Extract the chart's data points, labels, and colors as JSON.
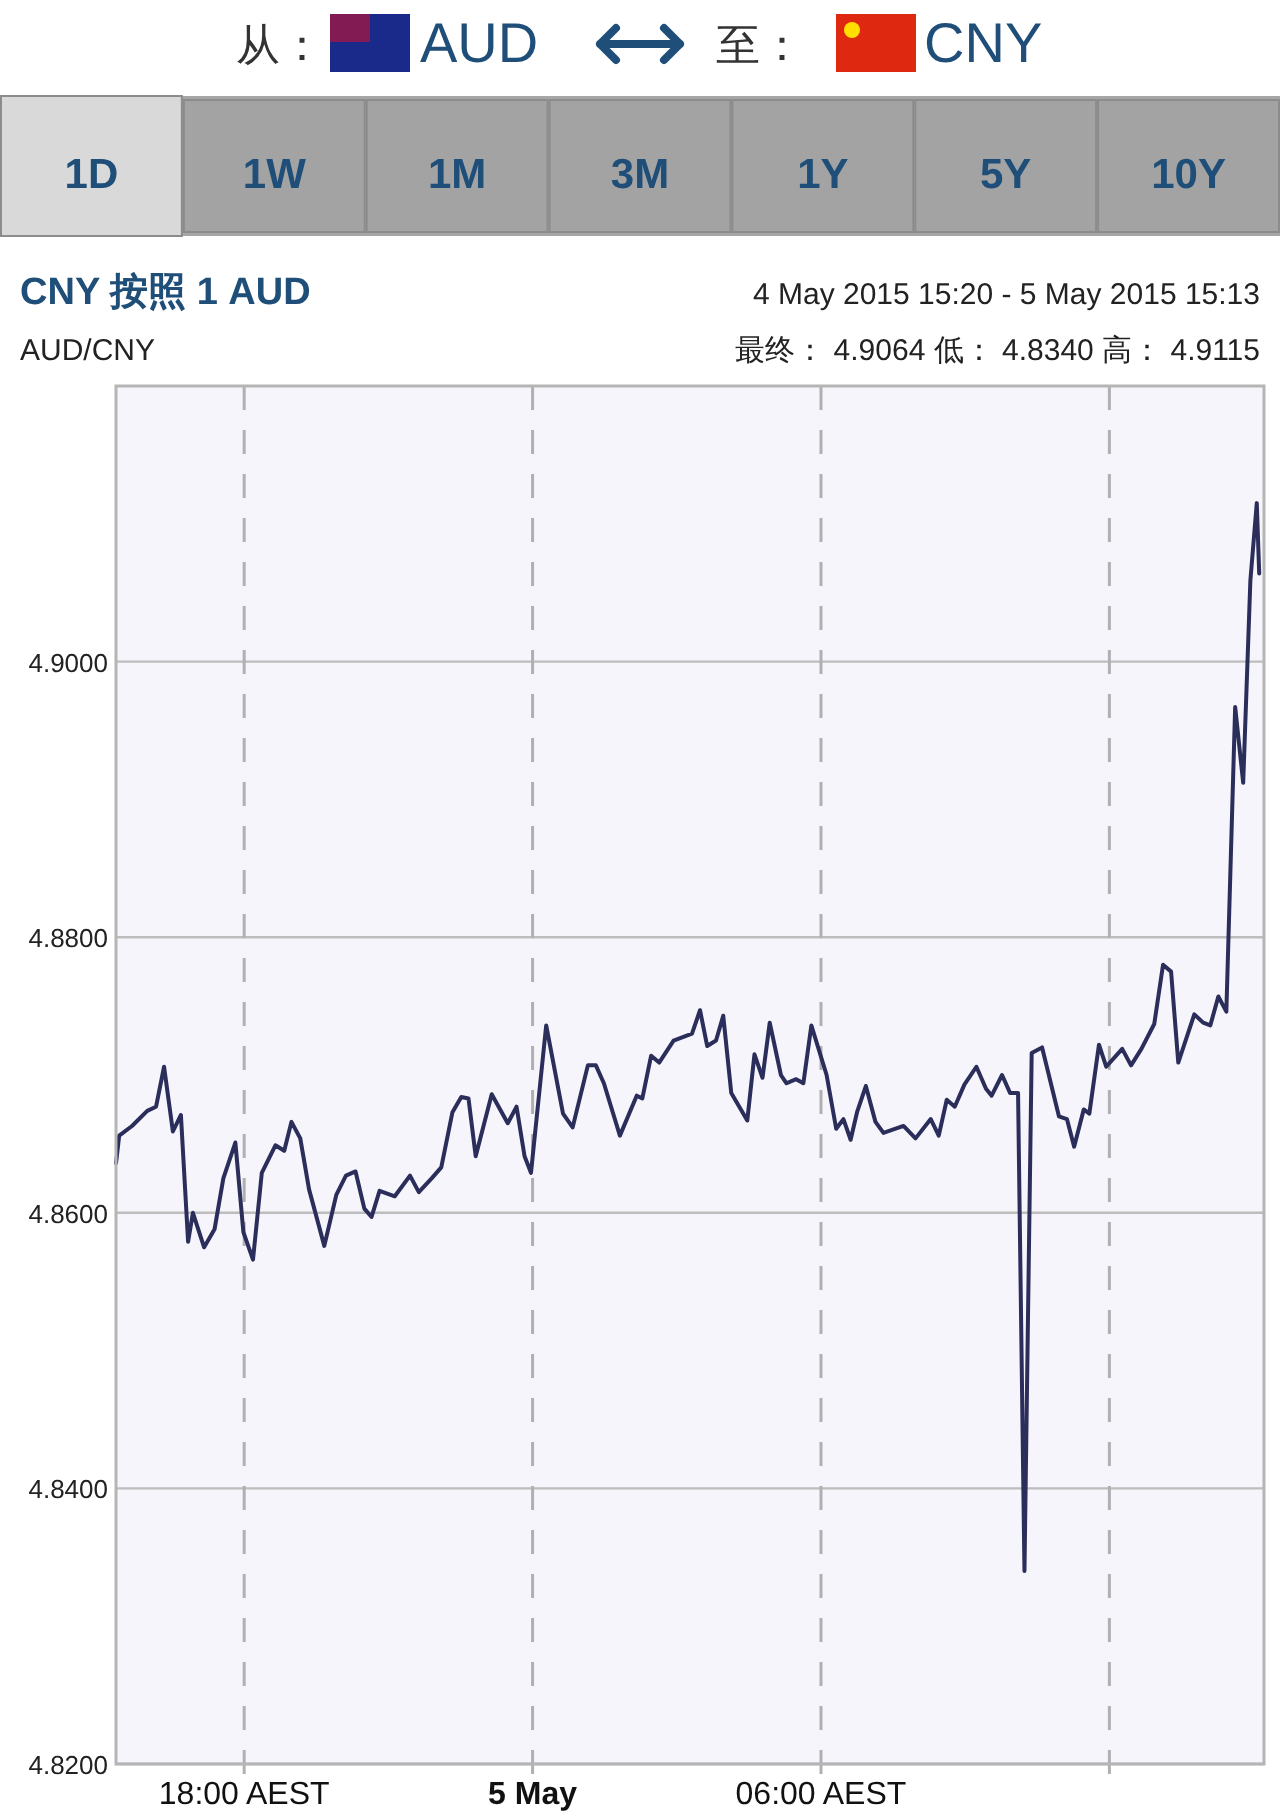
{
  "chart_data": {
    "type": "line",
    "title": "CNY 按照 1 AUD",
    "subtitle": "AUD/CNY",
    "annotations": [
      "从：",
      "AUD",
      "至：",
      "CNY",
      "1D",
      "1W",
      "1M",
      "3M",
      "1Y",
      "5Y",
      "10Y",
      "4 May 2015 15:20 - 5 May 2015 15:13",
      "最终： 4.9064 低： 4.8340 高： 4.9115"
    ],
    "xlim": [
      "2015-05-04T15:20",
      "2015-05-05T15:13"
    ],
    "ylim": [
      4.82,
      4.92
    ],
    "xticks": [
      {
        "value": "2015-05-04T18:00",
        "label": "18:00 AEST"
      },
      {
        "value": "2015-05-05T00:00",
        "label": "5 May"
      },
      {
        "value": "2015-05-05T06:00",
        "label": "06:00 AEST"
      },
      {
        "value": "2015-05-05T12:00",
        "label": null
      }
    ],
    "yticks": [
      {
        "value": 4.82,
        "label": "4.8200"
      },
      {
        "value": 4.84,
        "label": "4.8400"
      },
      {
        "value": 4.86,
        "label": "4.8600"
      },
      {
        "value": 4.88,
        "label": "4.8800"
      },
      {
        "value": 4.9,
        "label": "4.9000"
      }
    ],
    "grid": true,
    "marker": "none",
    "line_style": "solid",
    "series": [
      {
        "color": "#2b2d5a",
        "x": [
          "2015-05-04T15:20",
          "2015-05-04T15:24",
          "2015-05-04T15:40",
          "2015-05-04T15:59",
          "2015-05-04T16:10",
          "2015-05-04T16:20",
          "2015-05-04T16:31",
          "2015-05-04T16:41",
          "2015-05-04T16:50",
          "2015-05-04T16:56",
          "2015-05-04T17:10",
          "2015-05-04T17:23",
          "2015-05-04T17:34",
          "2015-05-04T17:49",
          "2015-05-04T17:59",
          "2015-05-04T18:11",
          "2015-05-04T18:22",
          "2015-05-04T18:39",
          "2015-05-04T18:50",
          "2015-05-04T18:59",
          "2015-05-04T19:10",
          "2015-05-04T19:21",
          "2015-05-04T19:40",
          "2015-05-04T19:55",
          "2015-05-04T20:07",
          "2015-05-04T20:19",
          "2015-05-04T20:30",
          "2015-05-04T20:39",
          "2015-05-04T20:49",
          "2015-05-04T21:08",
          "2015-05-04T21:27",
          "2015-05-04T21:38",
          "2015-05-04T21:54",
          "2015-05-04T22:06",
          "2015-05-04T22:20",
          "2015-05-04T22:31",
          "2015-05-04T22:40",
          "2015-05-04T22:49",
          "2015-05-04T23:09",
          "2015-05-04T23:29",
          "2015-05-04T23:40",
          "2015-05-04T23:50",
          "2015-05-04T23:58",
          "2015-05-05T00:17",
          "2015-05-05T00:38",
          "2015-05-05T00:50",
          "2015-05-05T01:09",
          "2015-05-05T01:19",
          "2015-05-05T01:29",
          "2015-05-05T01:49",
          "2015-05-05T02:10",
          "2015-05-05T02:17",
          "2015-05-05T02:28",
          "2015-05-05T02:38",
          "2015-05-05T02:56",
          "2015-05-05T03:19",
          "2015-05-05T03:29",
          "2015-05-05T03:38",
          "2015-05-05T03:49",
          "2015-05-05T03:58",
          "2015-05-05T04:08",
          "2015-05-05T04:28",
          "2015-05-05T04:37",
          "2015-05-05T04:47",
          "2015-05-05T04:56",
          "2015-05-05T05:10",
          "2015-05-05T05:17",
          "2015-05-05T05:29",
          "2015-05-05T05:38",
          "2015-05-05T05:48",
          "2015-05-05T06:07",
          "2015-05-05T06:19",
          "2015-05-05T06:28",
          "2015-05-05T06:37",
          "2015-05-05T06:45",
          "2015-05-05T06:56",
          "2015-05-05T07:08",
          "2015-05-05T07:18",
          "2015-05-05T07:43",
          "2015-05-05T07:58",
          "2015-05-05T08:17",
          "2015-05-05T08:27",
          "2015-05-05T08:37",
          "2015-05-05T08:47",
          "2015-05-05T08:59",
          "2015-05-05T09:14",
          "2015-05-05T09:26",
          "2015-05-05T09:33",
          "2015-05-05T09:46",
          "2015-05-05T09:56",
          "2015-05-05T10:06",
          "2015-05-05T10:14",
          "2015-05-05T10:23",
          "2015-05-05T10:36",
          "2015-05-05T10:57",
          "2015-05-05T11:07",
          "2015-05-05T11:16",
          "2015-05-05T11:28",
          "2015-05-05T11:35",
          "2015-05-05T11:47",
          "2015-05-05T11:56",
          "2015-05-05T12:16",
          "2015-05-05T12:27",
          "2015-05-05T12:40",
          "2015-05-05T12:56",
          "2015-05-05T13:07",
          "2015-05-05T13:17",
          "2015-05-05T13:26",
          "2015-05-05T13:46",
          "2015-05-05T13:57",
          "2015-05-05T14:06",
          "2015-05-05T14:16",
          "2015-05-05T14:26",
          "2015-05-05T14:37",
          "2015-05-05T14:47",
          "2015-05-05T14:56",
          "2015-05-05T15:04",
          "2015-05-05T15:07"
        ],
        "values": [
          4.8636,
          4.8656,
          4.8663,
          4.8674,
          4.8677,
          4.8706,
          4.8659,
          4.8671,
          4.8579,
          4.86,
          4.8575,
          4.8588,
          4.8625,
          4.8651,
          4.8586,
          4.8566,
          4.8629,
          4.8649,
          4.8645,
          4.8666,
          4.8654,
          4.8617,
          4.8576,
          4.8613,
          4.8627,
          4.863,
          4.8603,
          4.8597,
          4.8616,
          4.8612,
          4.8627,
          4.8615,
          4.8625,
          4.8633,
          4.8673,
          4.8684,
          4.8683,
          4.8641,
          4.8686,
          4.8665,
          4.8677,
          4.8641,
          4.8629,
          4.8736,
          4.8672,
          4.8662,
          4.8707,
          4.8707,
          4.8694,
          4.8656,
          4.8685,
          4.8683,
          4.8714,
          4.8709,
          4.8725,
          4.873,
          4.8747,
          4.8721,
          4.8725,
          4.8743,
          4.8687,
          4.8667,
          4.8715,
          4.8698,
          4.8738,
          4.87,
          4.8694,
          4.8697,
          4.8694,
          4.8736,
          4.87,
          4.8661,
          4.8668,
          4.8653,
          4.8673,
          4.8692,
          4.8666,
          4.8658,
          4.8663,
          4.8654,
          4.8668,
          4.8656,
          4.8682,
          4.8677,
          4.8693,
          4.8706,
          4.869,
          4.8685,
          4.87,
          4.8687,
          4.8687,
          4.834,
          4.8716,
          4.872,
          4.867,
          4.8668,
          4.8648,
          4.8675,
          4.8672,
          4.8722,
          4.8706,
          4.8719,
          4.8707,
          4.8719,
          4.8737,
          4.878,
          4.8775,
          4.8709,
          4.8744,
          4.8738,
          4.8736,
          4.8757,
          4.8746,
          4.8967,
          4.8912,
          4.9059,
          4.9115,
          4.9064
        ]
      }
    ]
  }
}
